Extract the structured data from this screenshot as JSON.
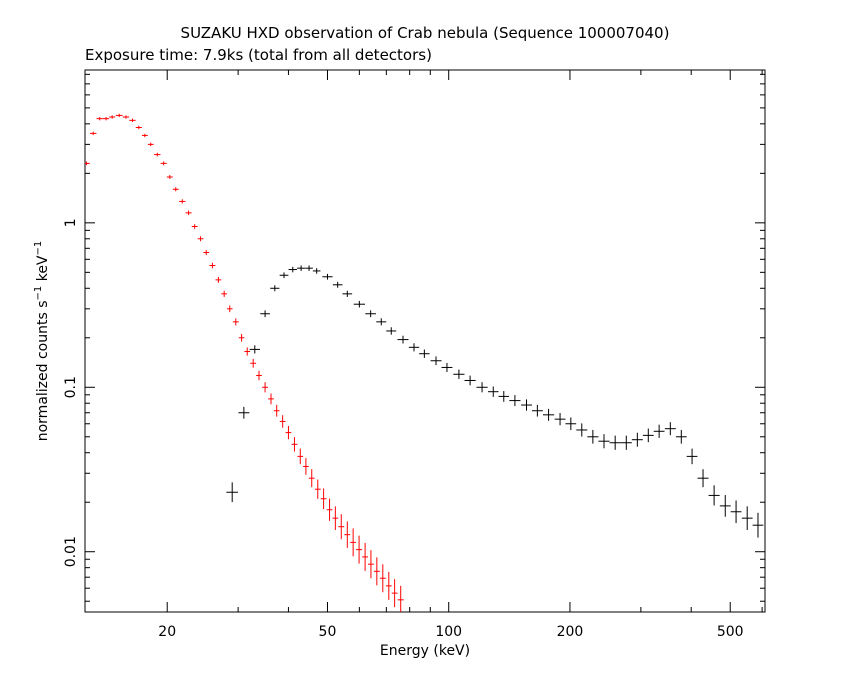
{
  "chart_data": {
    "type": "scatter",
    "title": "SUZAKU HXD observation of Crab nebula (Sequence 100007040)",
    "subtitle": "Exposure time: 7.9ks (total from all detectors)",
    "xlabel": "Energy (keV)",
    "ylabel": "normalized counts s",
    "ylabel_sup1": "−1",
    "ylabel_mid": " keV",
    "ylabel_sup2": "−1",
    "x_scale": "log",
    "y_scale": "log",
    "xlim": [
      12.5,
      610
    ],
    "ylim": [
      0.0043,
      8.5
    ],
    "x_major_ticks": [
      20,
      50,
      100,
      200,
      500
    ],
    "x_tick_labels": [
      "20",
      "50",
      "100",
      "200",
      "500"
    ],
    "y_major_ticks": [
      0.01,
      0.1,
      1
    ],
    "y_tick_labels": [
      "0.01",
      "0.1",
      "1"
    ],
    "grid": false,
    "colors": {
      "series_1": "#ff0000",
      "series_2": "#000000",
      "axes": "#000000"
    },
    "series": [
      {
        "x": [
          12.6,
          13.1,
          13.6,
          14.1,
          14.6,
          15.2,
          15.8,
          16.4,
          17.0,
          17.6,
          18.2,
          18.9,
          19.6,
          20.3,
          21.0,
          21.8,
          22.6,
          23.4,
          24.2,
          25.0,
          25.9,
          26.8,
          27.7,
          28.6,
          29.6,
          30.6,
          31.6,
          32.7,
          33.8,
          35.0,
          36.2,
          37.4,
          38.7,
          40.0,
          41.4,
          42.8,
          44.2,
          45.7,
          47.3,
          48.9,
          50.6,
          52.3,
          54.1,
          56.0,
          57.9,
          59.9,
          62.0,
          64.1,
          66.3,
          68.6,
          71.0,
          73.4,
          76.0
        ],
        "y": [
          2.3,
          3.5,
          4.3,
          4.3,
          4.4,
          4.5,
          4.4,
          4.2,
          3.8,
          3.4,
          3.0,
          2.6,
          2.3,
          1.9,
          1.6,
          1.35,
          1.15,
          0.95,
          0.8,
          0.66,
          0.55,
          0.45,
          0.37,
          0.3,
          0.25,
          0.2,
          0.165,
          0.14,
          0.118,
          0.1,
          0.085,
          0.072,
          0.062,
          0.053,
          0.045,
          0.038,
          0.033,
          0.028,
          0.024,
          0.021,
          0.018,
          0.016,
          0.0142,
          0.0127,
          0.0114,
          0.0103,
          0.0093,
          0.0084,
          0.0076,
          0.0069,
          0.0062,
          0.0056,
          0.0051
        ]
      },
      {
        "x": [
          29.0,
          31.0,
          33.0,
          35.0,
          37.0,
          39.0,
          41.0,
          43.0,
          45.0,
          47.0,
          50.0,
          53.0,
          56.0,
          60.0,
          64.0,
          68.0,
          72.0,
          77.0,
          82.0,
          87.0,
          93.0,
          99.0,
          106.0,
          113.0,
          121.0,
          129.0,
          137.0,
          146.0,
          156.0,
          166.0,
          177.0,
          189.0,
          201.0,
          214.0,
          228.0,
          243.0,
          259.0,
          276.0,
          294.0,
          313.0,
          333.0,
          355.0,
          378.0,
          402.0,
          428.0,
          456.0,
          486.0,
          517.0,
          551.0,
          586.0
        ],
        "y": [
          0.023,
          0.07,
          0.17,
          0.28,
          0.4,
          0.48,
          0.52,
          0.53,
          0.53,
          0.51,
          0.47,
          0.42,
          0.37,
          0.32,
          0.28,
          0.25,
          0.22,
          0.195,
          0.175,
          0.16,
          0.145,
          0.132,
          0.12,
          0.11,
          0.1,
          0.094,
          0.088,
          0.083,
          0.078,
          0.072,
          0.068,
          0.064,
          0.06,
          0.055,
          0.05,
          0.047,
          0.046,
          0.046,
          0.048,
          0.051,
          0.054,
          0.056,
          0.05,
          0.038,
          0.028,
          0.022,
          0.019,
          0.0175,
          0.016,
          0.0145
        ]
      }
    ]
  }
}
